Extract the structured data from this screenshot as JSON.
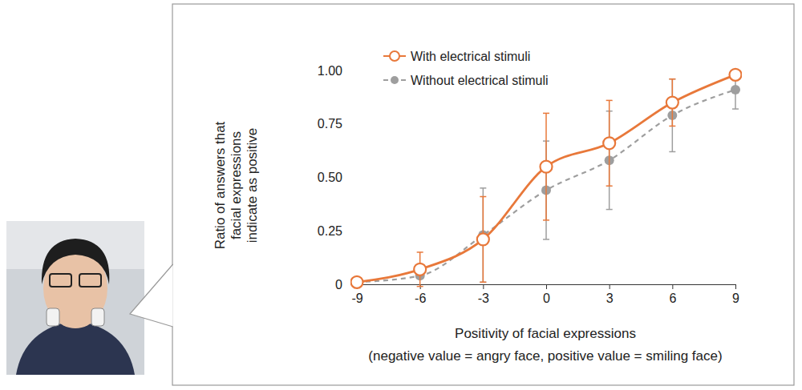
{
  "chart_data": {
    "type": "line",
    "x": [
      -9,
      -6,
      -3,
      0,
      3,
      6,
      9
    ],
    "xlim": [
      -9,
      9
    ],
    "xticks": [
      -9,
      -6,
      -3,
      0,
      3,
      6,
      9
    ],
    "ylim": [
      0,
      1
    ],
    "yticks": [
      0,
      0.25,
      {
        "value": 0.5,
        "label": "0.50"
      },
      0.75,
      {
        "value": 1,
        "label": "1.00"
      }
    ],
    "x_label": [
      "Positivity of facial expressions",
      "(negative value = angry face, positive value = smiling face)"
    ],
    "y_label": [
      "Ratio of answers that",
      "facial expressions",
      "indicate as positive"
    ],
    "legend": "top-left",
    "series": [
      {
        "name": "With electrical stimuli",
        "color": "#e8783a",
        "marker": "open-circle",
        "line_style": "solid",
        "values": [
          0.01,
          0.07,
          0.21,
          0.55,
          0.66,
          0.85,
          0.98
        ],
        "errors": [
          0,
          0.08,
          0.2,
          0.25,
          0.2,
          0.11,
          0
        ]
      },
      {
        "name": "Without electrical stimuli",
        "color": "#9e9e9e",
        "marker": "filled-circle",
        "line_style": "dashed",
        "values": [
          0.01,
          0.04,
          0.23,
          0.44,
          0.58,
          0.79,
          0.91
        ],
        "errors": [
          0,
          0,
          0.22,
          0.23,
          0.23,
          0.17,
          0.09
        ]
      }
    ]
  }
}
